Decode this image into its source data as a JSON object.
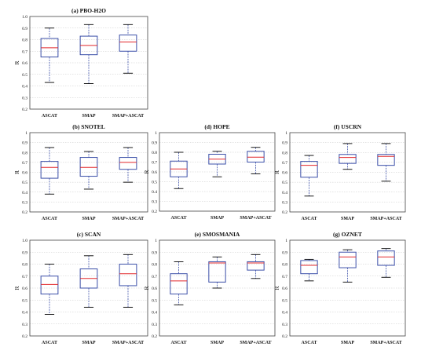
{
  "chart_data": [
    {
      "type": "box",
      "title": "(a) PBO-H2O",
      "ylabel": "R",
      "ylim": [
        0.2,
        1.0
      ],
      "yticks": [
        "0.2",
        "0.3",
        "0.4",
        "0.5",
        "0.6",
        "0.7",
        "0.8",
        "0.9",
        "1.0"
      ],
      "categories": [
        "ASCAT",
        "SMAP",
        "SMAP+ASCAT"
      ],
      "boxes": [
        {
          "min": 0.43,
          "q1": 0.65,
          "median": 0.73,
          "q3": 0.81,
          "max": 0.9
        },
        {
          "min": 0.42,
          "q1": 0.67,
          "median": 0.75,
          "q3": 0.83,
          "max": 0.93
        },
        {
          "min": 0.51,
          "q1": 0.7,
          "median": 0.78,
          "q3": 0.84,
          "max": 0.93
        }
      ],
      "grid": true,
      "colors": {
        "box": "#3b4fa8",
        "median": "#e2282c"
      }
    },
    {
      "type": "box",
      "title": "(b) SNOTEL",
      "ylabel": "R",
      "ylim": [
        0.2,
        1.0
      ],
      "yticks": [
        "0.2",
        "0.3",
        "0.4",
        "0.5",
        "0.6",
        "0.7",
        "0.8",
        "0.9",
        "1"
      ],
      "categories": [
        "ASCAT",
        "SMAP",
        "SMAP+ASCAT"
      ],
      "boxes": [
        {
          "min": 0.38,
          "q1": 0.54,
          "median": 0.65,
          "q3": 0.71,
          "max": 0.85
        },
        {
          "min": 0.43,
          "q1": 0.56,
          "median": 0.65,
          "q3": 0.75,
          "max": 0.81
        },
        {
          "min": 0.5,
          "q1": 0.63,
          "median": 0.7,
          "q3": 0.75,
          "max": 0.85
        }
      ],
      "grid": true
    },
    {
      "type": "box",
      "title": "(d) HOPE",
      "ylabel": "R",
      "ylim": [
        0.2,
        1.0
      ],
      "yticks": [
        "0.2",
        "0.3",
        "0.4",
        "0.5",
        "0.6",
        "0.7",
        "0.8",
        "0.9",
        "1"
      ],
      "categories": [
        "ASCAT",
        "SMAP",
        "SMAP+ASCAT"
      ],
      "boxes": [
        {
          "min": 0.43,
          "q1": 0.55,
          "median": 0.63,
          "q3": 0.71,
          "max": 0.8
        },
        {
          "min": 0.55,
          "q1": 0.68,
          "median": 0.73,
          "q3": 0.78,
          "max": 0.81
        },
        {
          "min": 0.58,
          "q1": 0.7,
          "median": 0.75,
          "q3": 0.81,
          "max": 0.85
        }
      ],
      "grid": true
    },
    {
      "type": "box",
      "title": "(f) USCRN",
      "ylabel": "R",
      "ylim": [
        0.2,
        1.0
      ],
      "yticks": [
        "0.2",
        "0.3",
        "0.4",
        "0.5",
        "0.6",
        "0.7",
        "0.8",
        "0.9",
        "1"
      ],
      "categories": [
        "ASCAT",
        "SMAP",
        "SMAP+ASCAT"
      ],
      "boxes": [
        {
          "min": 0.36,
          "q1": 0.55,
          "median": 0.67,
          "q3": 0.71,
          "max": 0.77
        },
        {
          "min": 0.63,
          "q1": 0.69,
          "median": 0.75,
          "q3": 0.78,
          "max": 0.89
        },
        {
          "min": 0.51,
          "q1": 0.67,
          "median": 0.76,
          "q3": 0.78,
          "max": 0.89
        }
      ],
      "grid": true
    },
    {
      "type": "box",
      "title": "(c) SCAN",
      "ylabel": "R",
      "ylim": [
        0.2,
        1.0
      ],
      "yticks": [
        "0.2",
        "0.3",
        "0.4",
        "0.5",
        "0.6",
        "0.7",
        "0.8",
        "0.9",
        "1.0"
      ],
      "categories": [
        "ASCAT",
        "SMAP",
        "SMAP+ASCAT"
      ],
      "boxes": [
        {
          "min": 0.38,
          "q1": 0.55,
          "median": 0.63,
          "q3": 0.7,
          "max": 0.8
        },
        {
          "min": 0.44,
          "q1": 0.6,
          "median": 0.68,
          "q3": 0.76,
          "max": 0.87
        },
        {
          "min": 0.44,
          "q1": 0.62,
          "median": 0.72,
          "q3": 0.8,
          "max": 0.88
        }
      ],
      "grid": true
    },
    {
      "type": "box",
      "title": "(e) SMOSMANIA",
      "ylabel": "R",
      "ylim": [
        0.2,
        1.0
      ],
      "yticks": [
        "0.2",
        "0.3",
        "0.4",
        "0.5",
        "0.6",
        "0.7",
        "0.8",
        "0.9",
        "1"
      ],
      "categories": [
        "ASCAT",
        "SMAP",
        "SMAP+ASCAT"
      ],
      "boxes": [
        {
          "min": 0.46,
          "q1": 0.55,
          "median": 0.66,
          "q3": 0.72,
          "max": 0.82
        },
        {
          "min": 0.6,
          "q1": 0.65,
          "median": 0.81,
          "q3": 0.82,
          "max": 0.86
        },
        {
          "min": 0.68,
          "q1": 0.75,
          "median": 0.81,
          "q3": 0.82,
          "max": 0.88
        }
      ],
      "grid": true
    },
    {
      "type": "box",
      "title": "(g) OZNET",
      "ylabel": "R",
      "ylim": [
        0.2,
        1.0
      ],
      "yticks": [
        "0.2",
        "0.3",
        "0.4",
        "0.5",
        "0.6",
        "0.7",
        "0.8",
        "0.9",
        "1"
      ],
      "categories": [
        "ASCAT",
        "SMAP",
        "SMAP+ASCAT"
      ],
      "boxes": [
        {
          "min": 0.66,
          "q1": 0.72,
          "median": 0.79,
          "q3": 0.83,
          "max": 0.84
        },
        {
          "min": 0.65,
          "q1": 0.77,
          "median": 0.86,
          "q3": 0.9,
          "max": 0.92
        },
        {
          "min": 0.69,
          "q1": 0.79,
          "median": 0.86,
          "q3": 0.91,
          "max": 0.93
        }
      ],
      "grid": true
    }
  ]
}
